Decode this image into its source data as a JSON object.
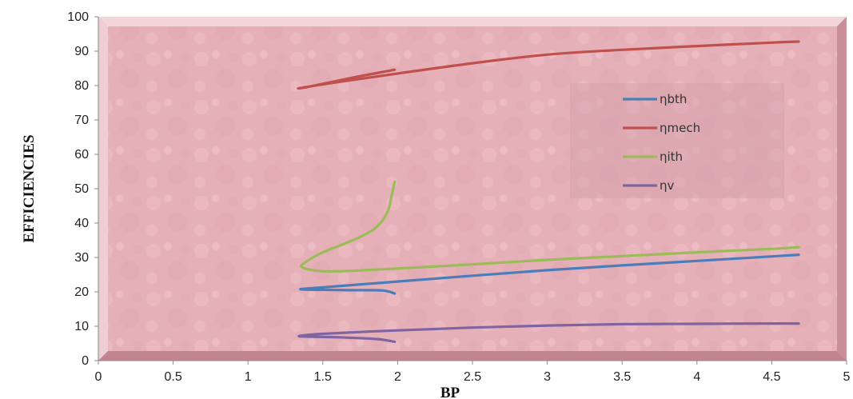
{
  "chart_data": {
    "type": "line",
    "title": "",
    "xlabel": "BP",
    "ylabel": "EFFICIENCIES",
    "xlim": [
      0,
      5
    ],
    "ylim": [
      0,
      100
    ],
    "x_ticks": [
      0,
      0.5,
      1,
      1.5,
      2,
      2.5,
      3,
      3.5,
      4,
      4.5,
      5
    ],
    "x_tick_labels": [
      "0",
      "0.5",
      "1",
      "1.5",
      "2",
      "2.5",
      "3",
      "3.5",
      "4",
      "4.5",
      "5"
    ],
    "y_ticks": [
      0,
      10,
      20,
      30,
      40,
      50,
      60,
      70,
      80,
      90,
      100
    ],
    "y_tick_labels": [
      "0",
      "10",
      "20",
      "30",
      "40",
      "50",
      "60",
      "70",
      "80",
      "90",
      "100"
    ],
    "grid": false,
    "legend_position": "right",
    "background_color": "#e8b4bc",
    "series": [
      {
        "name": "ηbth",
        "color": "#4a7ebb",
        "points": [
          [
            1.98,
            19.5
          ],
          [
            1.9,
            20.4
          ],
          [
            1.7,
            20.5
          ],
          [
            1.45,
            20.6
          ],
          [
            1.35,
            20.8
          ],
          [
            1.5,
            21.3
          ],
          [
            2,
            23
          ],
          [
            2.5,
            24.7
          ],
          [
            3,
            26.3
          ],
          [
            3.5,
            27.7
          ],
          [
            4,
            29
          ],
          [
            4.5,
            30.3
          ],
          [
            4.68,
            30.8
          ]
        ]
      },
      {
        "name": "ηmech",
        "color": "#c0504d",
        "points": [
          [
            1.98,
            84.6
          ],
          [
            1.7,
            82.3
          ],
          [
            1.4,
            79.6
          ],
          [
            1.35,
            79.3
          ],
          [
            1.6,
            81
          ],
          [
            2,
            83.5
          ],
          [
            2.5,
            86.5
          ],
          [
            3,
            89
          ],
          [
            3.5,
            90.4
          ],
          [
            4,
            91.5
          ],
          [
            4.5,
            92.5
          ],
          [
            4.68,
            92.8
          ]
        ]
      },
      {
        "name": "ηith",
        "color": "#9bbb59",
        "points": [
          [
            1.98,
            52
          ],
          [
            1.96,
            48
          ],
          [
            1.93,
            43
          ],
          [
            1.85,
            38.5
          ],
          [
            1.7,
            35
          ],
          [
            1.5,
            31.5
          ],
          [
            1.38,
            28.5
          ],
          [
            1.36,
            27.2
          ],
          [
            1.45,
            26.2
          ],
          [
            1.6,
            26
          ],
          [
            2,
            26.8
          ],
          [
            2.5,
            28
          ],
          [
            3,
            29.3
          ],
          [
            3.5,
            30.4
          ],
          [
            4,
            31.5
          ],
          [
            4.5,
            32.5
          ],
          [
            4.68,
            33
          ]
        ]
      },
      {
        "name": "ηv",
        "color": "#8064a2",
        "points": [
          [
            1.98,
            5.5
          ],
          [
            1.85,
            6.3
          ],
          [
            1.6,
            6.8
          ],
          [
            1.38,
            7
          ],
          [
            1.35,
            7.2
          ],
          [
            1.5,
            7.8
          ],
          [
            2,
            8.8
          ],
          [
            2.5,
            9.6
          ],
          [
            3,
            10.2
          ],
          [
            3.5,
            10.6
          ],
          [
            4,
            10.7
          ],
          [
            4.5,
            10.8
          ],
          [
            4.68,
            10.8
          ]
        ]
      }
    ]
  }
}
